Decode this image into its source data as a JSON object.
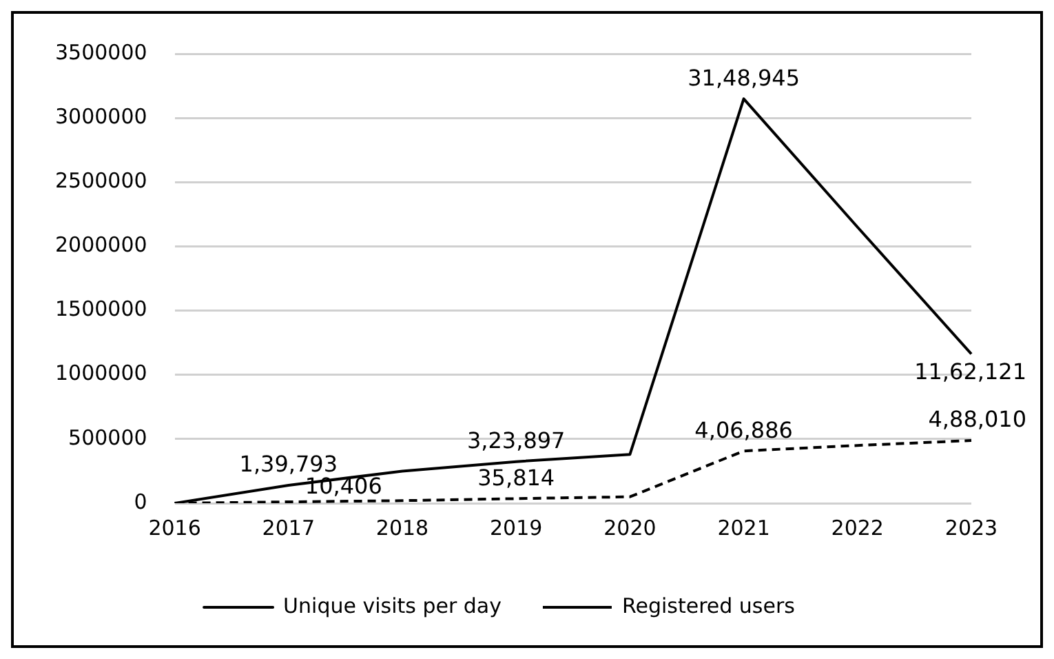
{
  "chart_data": {
    "type": "line",
    "categories": [
      "2016",
      "2017",
      "2018",
      "2019",
      "2020",
      "2021",
      "2022",
      "2023"
    ],
    "series": [
      {
        "name": "Unique visits per day",
        "color": "#000000",
        "line_style": "solid",
        "values": [
          0,
          139793,
          250000,
          323897,
          380000,
          3148945,
          2150000,
          1162121
        ],
        "value_labels": [
          null,
          "1,39,793",
          null,
          "3,23,897",
          null,
          "31,48,945",
          null,
          "11,62,121"
        ]
      },
      {
        "name": "Registered users",
        "color": "#000000",
        "line_style": "dashed",
        "values": [
          0,
          10406,
          20000,
          35814,
          50000,
          406886,
          450000,
          488010
        ],
        "value_labels": [
          null,
          "10,406",
          null,
          "35,814",
          null,
          "4,06,886",
          null,
          "4,88,010"
        ]
      }
    ],
    "ylim": [
      0,
      3500000
    ],
    "yticks": [
      0,
      500000,
      1000000,
      1500000,
      2000000,
      2500000,
      3000000,
      3500000
    ],
    "grid": "y",
    "legend": "bottom",
    "marker": "none"
  }
}
